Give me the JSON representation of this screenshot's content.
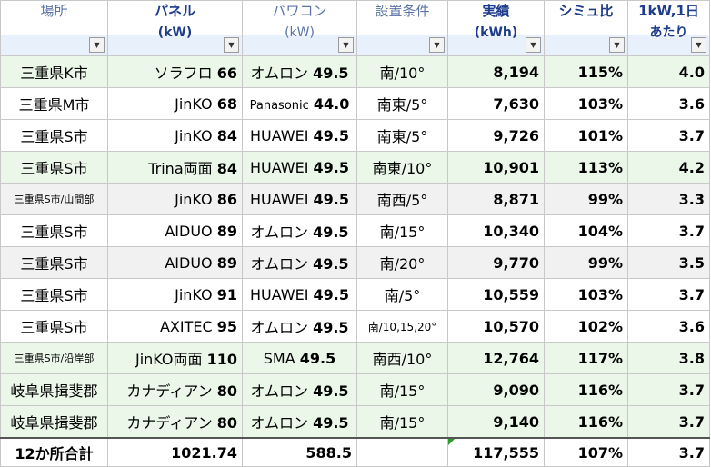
{
  "headers": [
    {
      "line1": "場所",
      "line2": "",
      "bold": false
    },
    {
      "line1": "パネル",
      "line2": "(kW)",
      "bold": true
    },
    {
      "line1": "パワコン",
      "line2": "(kW)",
      "bold": false
    },
    {
      "line1": "設置条件",
      "line2": "",
      "bold": false
    },
    {
      "line1": "実績",
      "line2": "(kWh)",
      "bold": true
    },
    {
      "line1": "シミュ比",
      "line2": "",
      "bold": true
    },
    {
      "line1": "1kW,1日",
      "line2": "あたり",
      "bold": true
    }
  ],
  "dropdown_glyph": "▼",
  "rows": [
    {
      "style": "green",
      "location": "三重県K市",
      "panel": "ソラフロ",
      "panel_kw": "66",
      "pcs": "オムロン",
      "pcs_kw": "49.5",
      "condition": "南/10°",
      "actual": "8,194",
      "ratio": "115%",
      "per_kw_day": "4.0"
    },
    {
      "style": "white",
      "location": "三重県M市",
      "panel": "JinKO",
      "panel_kw": "68",
      "pcs": "Panasonic",
      "pcs_kw": "44.0",
      "condition": "南東/5°",
      "actual": "7,630",
      "ratio": "103%",
      "per_kw_day": "3.6"
    },
    {
      "style": "white",
      "location": "三重県S市",
      "panel": "JinKO",
      "panel_kw": "84",
      "pcs": "HUAWEI",
      "pcs_kw": "49.5",
      "condition": "南東/5°",
      "actual": "9,726",
      "ratio": "101%",
      "per_kw_day": "3.7"
    },
    {
      "style": "green",
      "location": "三重県S市",
      "panel": "Trina両面",
      "panel_kw": "84",
      "pcs": "HUAWEI",
      "pcs_kw": "49.5",
      "condition": "南東/10°",
      "actual": "10,901",
      "ratio": "113%",
      "per_kw_day": "4.2"
    },
    {
      "style": "gray",
      "location": "三重県S市/山間部",
      "panel": "JinKO",
      "panel_kw": "86",
      "pcs": "HUAWEI",
      "pcs_kw": "49.5",
      "condition": "南西/5°",
      "actual": "8,871",
      "ratio": "99%",
      "per_kw_day": "3.3"
    },
    {
      "style": "white",
      "location": "三重県S市",
      "panel": "AIDUO",
      "panel_kw": "89",
      "pcs": "オムロン",
      "pcs_kw": "49.5",
      "condition": "南/15°",
      "actual": "10,340",
      "ratio": "104%",
      "per_kw_day": "3.7"
    },
    {
      "style": "gray",
      "location": "三重県S市",
      "panel": "AIDUO",
      "panel_kw": "89",
      "pcs": "オムロン",
      "pcs_kw": "49.5",
      "condition": "南/20°",
      "actual": "9,770",
      "ratio": "99%",
      "per_kw_day": "3.5"
    },
    {
      "style": "white",
      "location": "三重県S市",
      "panel": "JinKO",
      "panel_kw": "91",
      "pcs": "HUAWEI",
      "pcs_kw": "49.5",
      "condition": "南/5°",
      "actual": "10,559",
      "ratio": "103%",
      "per_kw_day": "3.7"
    },
    {
      "style": "white",
      "location": "三重県S市",
      "panel": "AXITEC",
      "panel_kw": "95",
      "pcs": "オムロン",
      "pcs_kw": "49.5",
      "condition": "南/10,15,20°",
      "actual": "10,570",
      "ratio": "102%",
      "per_kw_day": "3.6"
    },
    {
      "style": "green",
      "location": "三重県S市/沿岸部",
      "panel": "JinKO両面",
      "panel_kw": "110",
      "pcs": "SMA",
      "pcs_kw": "49.5",
      "condition": "南西/10°",
      "actual": "12,764",
      "ratio": "117%",
      "per_kw_day": "3.8"
    },
    {
      "style": "green",
      "location": "岐阜県揖斐郡",
      "panel": "カナディアン",
      "panel_kw": "80",
      "pcs": "オムロン",
      "pcs_kw": "49.5",
      "condition": "南/15°",
      "actual": "9,090",
      "ratio": "116%",
      "per_kw_day": "3.7"
    },
    {
      "style": "green",
      "location": "岐阜県揖斐郡",
      "panel": "カナディアン",
      "panel_kw": "80",
      "pcs": "オムロン",
      "pcs_kw": "49.5",
      "condition": "南/15°",
      "actual": "9,140",
      "ratio": "116%",
      "per_kw_day": "3.7"
    }
  ],
  "total": {
    "location": "12か所合計",
    "panel_kw": "1021.74",
    "pcs_kw": "588.5",
    "condition": "",
    "actual": "117,555",
    "ratio": "107%",
    "per_kw_day": "3.7"
  },
  "colors": {
    "green_row": "#eaf7e9",
    "gray_row": "#f1f1f1",
    "header_text": "#1e3c8c",
    "header_filter_strip": "#d6e4f7",
    "comment_marker": "#2a9a2a"
  }
}
